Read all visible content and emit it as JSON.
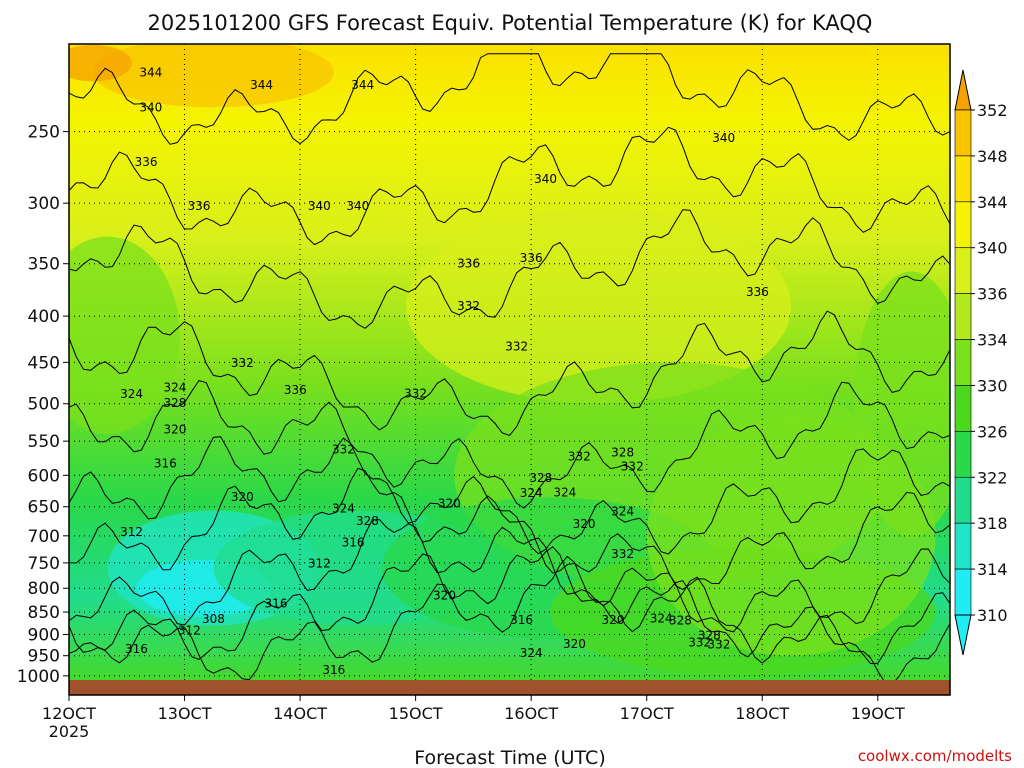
{
  "chart_data": {
    "type": "heatmap",
    "title": "2025101200 GFS Forecast Equiv. Potential Temperature (K) for KAQQ",
    "xlabel": "Forecast Time (UTC)",
    "ylabel": "",
    "credit": "coolwx.com/modelts",
    "x_ticks": [
      "12OCT",
      "13OCT",
      "14OCT",
      "15OCT",
      "16OCT",
      "17OCT",
      "18OCT",
      "19OCT"
    ],
    "x_tick_year": "2025",
    "x_range_hours": [
      0,
      183
    ],
    "y_ticks": [
      250,
      300,
      350,
      400,
      450,
      500,
      550,
      600,
      650,
      700,
      750,
      800,
      850,
      900,
      950,
      1000
    ],
    "y_range_hpa": [
      1050,
      200
    ],
    "y_scale": "log",
    "grid": true,
    "colorbar": {
      "levels": [
        352,
        348,
        344,
        340,
        336,
        334,
        330,
        326,
        322,
        318,
        314,
        310
      ],
      "colors": [
        "#f4a200",
        "#f8c400",
        "#fbe000",
        "#f4f400",
        "#d8ef1a",
        "#b2e81e",
        "#7ae01c",
        "#4cd81c",
        "#2ad848",
        "#20dc8c",
        "#20e4c8",
        "#20ecf4"
      ]
    },
    "contour_levels": [
      308,
      312,
      316,
      320,
      324,
      328,
      332,
      336,
      340,
      344
    ],
    "contour_labels": [
      {
        "t": 17,
        "p": 215,
        "v": "344"
      },
      {
        "t": 40,
        "p": 222,
        "v": "344"
      },
      {
        "t": 61,
        "p": 222,
        "v": "344"
      },
      {
        "t": 17,
        "p": 235,
        "v": "340"
      },
      {
        "t": 52,
        "p": 302,
        "v": "340"
      },
      {
        "t": 60,
        "p": 302,
        "v": "340"
      },
      {
        "t": 99,
        "p": 282,
        "v": "340"
      },
      {
        "t": 136,
        "p": 254,
        "v": "340"
      },
      {
        "t": 16,
        "p": 270,
        "v": "336"
      },
      {
        "t": 27,
        "p": 302,
        "v": "336"
      },
      {
        "t": 47,
        "p": 483,
        "v": "336"
      },
      {
        "t": 83,
        "p": 350,
        "v": "336"
      },
      {
        "t": 96,
        "p": 345,
        "v": "336"
      },
      {
        "t": 143,
        "p": 376,
        "v": "336"
      },
      {
        "t": 36,
        "p": 451,
        "v": "332"
      },
      {
        "t": 57,
        "p": 562,
        "v": "332"
      },
      {
        "t": 72,
        "p": 487,
        "v": "332"
      },
      {
        "t": 83,
        "p": 390,
        "v": "332"
      },
      {
        "t": 93,
        "p": 432,
        "v": "332"
      },
      {
        "t": 106,
        "p": 572,
        "v": "332"
      },
      {
        "t": 115,
        "p": 733,
        "v": "332"
      },
      {
        "t": 131,
        "p": 919,
        "v": "332"
      },
      {
        "t": 135,
        "p": 923,
        "v": "332"
      },
      {
        "t": 13,
        "p": 488,
        "v": "324"
      },
      {
        "t": 22,
        "p": 480,
        "v": "324"
      },
      {
        "t": 57,
        "p": 653,
        "v": "324"
      },
      {
        "t": 96,
        "p": 628,
        "v": "324"
      },
      {
        "t": 115,
        "p": 658,
        "v": "324"
      },
      {
        "t": 103,
        "p": 627,
        "v": "324"
      },
      {
        "t": 96,
        "p": 944,
        "v": "324"
      },
      {
        "t": 123,
        "p": 864,
        "v": "324"
      },
      {
        "t": 22,
        "p": 499,
        "v": "328"
      },
      {
        "t": 62,
        "p": 674,
        "v": "328"
      },
      {
        "t": 98,
        "p": 604,
        "v": "328"
      },
      {
        "t": 133,
        "p": 902,
        "v": "328"
      },
      {
        "t": 115,
        "p": 566,
        "v": "328"
      },
      {
        "t": 127,
        "p": 869,
        "v": "328"
      },
      {
        "t": 22,
        "p": 534,
        "v": "320"
      },
      {
        "t": 36,
        "p": 634,
        "v": "320"
      },
      {
        "t": 79,
        "p": 645,
        "v": "320"
      },
      {
        "t": 78,
        "p": 815,
        "v": "320"
      },
      {
        "t": 113,
        "p": 867,
        "v": "320"
      },
      {
        "t": 107,
        "p": 679,
        "v": "320"
      },
      {
        "t": 105,
        "p": 922,
        "v": "320"
      },
      {
        "t": 13,
        "p": 693,
        "v": "312"
      },
      {
        "t": 52,
        "p": 751,
        "v": "312"
      },
      {
        "t": 25,
        "p": 891,
        "v": "312"
      },
      {
        "t": 20,
        "p": 582,
        "v": "316"
      },
      {
        "t": 59,
        "p": 712,
        "v": "316"
      },
      {
        "t": 43,
        "p": 832,
        "v": "316"
      },
      {
        "t": 14,
        "p": 934,
        "v": "316"
      },
      {
        "t": 55,
        "p": 985,
        "v": "316"
      },
      {
        "t": 94,
        "p": 867,
        "v": "316"
      },
      {
        "t": 30,
        "p": 865,
        "v": "308"
      },
      {
        "t": 117,
        "p": 587,
        "v": "332"
      }
    ]
  }
}
